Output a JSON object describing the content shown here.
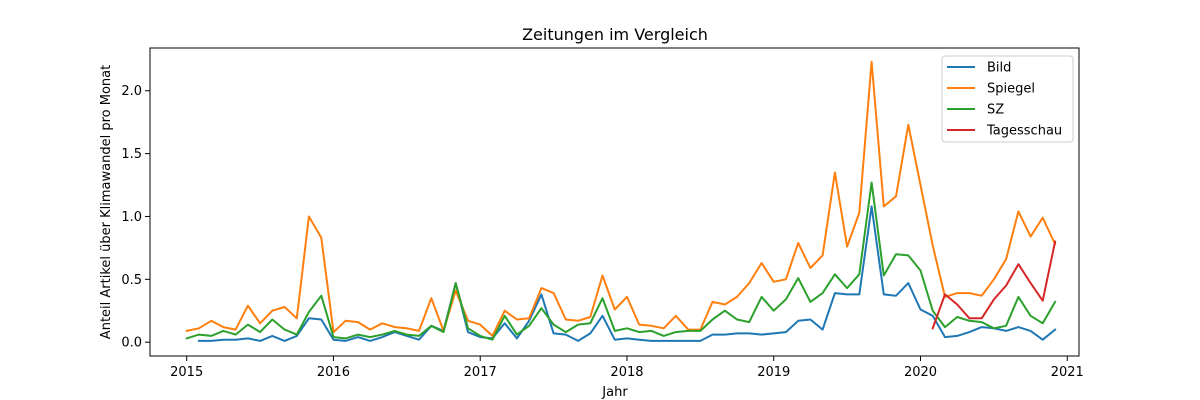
{
  "chart_data": {
    "type": "line",
    "title": "Zeitungen im Vergleich",
    "xlabel": "Jahr",
    "ylabel": "Anteil Artikel über Klimawandel pro Monat",
    "xlim": [
      2014.75,
      2021.08
    ],
    "ylim": [
      -0.11,
      2.34
    ],
    "xticks": [
      2015,
      2016,
      2017,
      2018,
      2019,
      2020,
      2021
    ],
    "yticks": [
      0.0,
      0.5,
      1.0,
      1.5,
      2.0
    ],
    "xtick_labels": [
      "2015",
      "2016",
      "2017",
      "2018",
      "2019",
      "2020",
      "2021"
    ],
    "ytick_labels": [
      "0.0",
      "0.5",
      "1.0",
      "1.5",
      "2.0"
    ],
    "grid": false,
    "legend_position": "top-right",
    "series": [
      {
        "name": "Bild",
        "color": "#1f77b4",
        "x": [
          2015.083,
          2015.167,
          2015.25,
          2015.333,
          2015.417,
          2015.5,
          2015.583,
          2015.667,
          2015.75,
          2015.833,
          2015.917,
          2016.0,
          2016.083,
          2016.167,
          2016.25,
          2016.333,
          2016.417,
          2016.5,
          2016.583,
          2016.667,
          2016.75,
          2016.833,
          2016.917,
          2017.0,
          2017.083,
          2017.167,
          2017.25,
          2017.333,
          2017.417,
          2017.5,
          2017.583,
          2017.667,
          2017.75,
          2017.833,
          2017.917,
          2018.0,
          2018.083,
          2018.167,
          2018.25,
          2018.333,
          2018.417,
          2018.5,
          2018.583,
          2018.667,
          2018.75,
          2018.833,
          2018.917,
          2019.0,
          2019.083,
          2019.167,
          2019.25,
          2019.333,
          2019.417,
          2019.5,
          2019.583,
          2019.667,
          2019.75,
          2019.833,
          2019.917,
          2020.0,
          2020.083,
          2020.167,
          2020.25,
          2020.333,
          2020.417,
          2020.5,
          2020.583,
          2020.667,
          2020.75,
          2020.833,
          2020.917
        ],
        "y": [
          0.01,
          0.01,
          0.02,
          0.02,
          0.03,
          0.01,
          0.05,
          0.01,
          0.05,
          0.19,
          0.18,
          0.02,
          0.01,
          0.04,
          0.01,
          0.04,
          0.08,
          0.05,
          0.02,
          0.13,
          0.09,
          0.47,
          0.08,
          0.04,
          0.03,
          0.15,
          0.03,
          0.17,
          0.38,
          0.07,
          0.06,
          0.01,
          0.07,
          0.21,
          0.02,
          0.03,
          0.02,
          0.01,
          0.01,
          0.01,
          0.01,
          0.01,
          0.06,
          0.06,
          0.07,
          0.07,
          0.06,
          0.07,
          0.08,
          0.17,
          0.18,
          0.1,
          0.39,
          0.38,
          0.38,
          1.08,
          0.38,
          0.37,
          0.47,
          0.26,
          0.21,
          0.04,
          0.05,
          0.08,
          0.12,
          0.11,
          0.09,
          0.12,
          0.09,
          0.02,
          0.1
        ]
      },
      {
        "name": "Spiegel",
        "color": "#ff7f0e",
        "x": [
          2015.0,
          2015.083,
          2015.167,
          2015.25,
          2015.333,
          2015.417,
          2015.5,
          2015.583,
          2015.667,
          2015.75,
          2015.833,
          2015.917,
          2016.0,
          2016.083,
          2016.167,
          2016.25,
          2016.333,
          2016.417,
          2016.5,
          2016.583,
          2016.667,
          2016.75,
          2016.833,
          2016.917,
          2017.0,
          2017.083,
          2017.167,
          2017.25,
          2017.333,
          2017.417,
          2017.5,
          2017.583,
          2017.667,
          2017.75,
          2017.833,
          2017.917,
          2018.0,
          2018.083,
          2018.167,
          2018.25,
          2018.333,
          2018.417,
          2018.5,
          2018.583,
          2018.667,
          2018.75,
          2018.833,
          2018.917,
          2019.0,
          2019.083,
          2019.167,
          2019.25,
          2019.333,
          2019.417,
          2019.5,
          2019.583,
          2019.667,
          2019.75,
          2019.833,
          2019.917,
          2020.0,
          2020.083,
          2020.167,
          2020.25,
          2020.333,
          2020.417,
          2020.5,
          2020.583,
          2020.667,
          2020.75,
          2020.833,
          2020.917
        ],
        "y": [
          0.09,
          0.11,
          0.17,
          0.12,
          0.1,
          0.29,
          0.15,
          0.25,
          0.28,
          0.19,
          1.0,
          0.83,
          0.08,
          0.17,
          0.16,
          0.1,
          0.15,
          0.12,
          0.11,
          0.09,
          0.35,
          0.09,
          0.41,
          0.17,
          0.14,
          0.05,
          0.25,
          0.18,
          0.19,
          0.43,
          0.39,
          0.18,
          0.17,
          0.2,
          0.53,
          0.26,
          0.36,
          0.14,
          0.13,
          0.11,
          0.21,
          0.1,
          0.1,
          0.32,
          0.3,
          0.36,
          0.47,
          0.63,
          0.48,
          0.5,
          0.79,
          0.59,
          0.69,
          1.35,
          0.76,
          1.03,
          2.23,
          1.08,
          1.16,
          1.73,
          1.25,
          0.77,
          0.36,
          0.39,
          0.39,
          0.37,
          0.5,
          0.66,
          1.04,
          0.84,
          0.99,
          0.78
        ]
      },
      {
        "name": "SZ",
        "color": "#2ca02c",
        "x": [
          2015.0,
          2015.083,
          2015.167,
          2015.25,
          2015.333,
          2015.417,
          2015.5,
          2015.583,
          2015.667,
          2015.75,
          2015.833,
          2015.917,
          2016.0,
          2016.083,
          2016.167,
          2016.25,
          2016.333,
          2016.417,
          2016.5,
          2016.583,
          2016.667,
          2016.75,
          2016.833,
          2016.917,
          2017.0,
          2017.083,
          2017.167,
          2017.25,
          2017.333,
          2017.417,
          2017.5,
          2017.583,
          2017.667,
          2017.75,
          2017.833,
          2017.917,
          2018.0,
          2018.083,
          2018.167,
          2018.25,
          2018.333,
          2018.417,
          2018.5,
          2018.583,
          2018.667,
          2018.75,
          2018.833,
          2018.917,
          2019.0,
          2019.083,
          2019.167,
          2019.25,
          2019.333,
          2019.417,
          2019.5,
          2019.583,
          2019.667,
          2019.75,
          2019.833,
          2019.917,
          2020.0,
          2020.083,
          2020.167,
          2020.25,
          2020.333,
          2020.417,
          2020.5,
          2020.583,
          2020.667,
          2020.75,
          2020.833,
          2020.917
        ],
        "y": [
          0.03,
          0.06,
          0.05,
          0.09,
          0.06,
          0.14,
          0.08,
          0.18,
          0.1,
          0.06,
          0.24,
          0.37,
          0.04,
          0.03,
          0.06,
          0.04,
          0.06,
          0.09,
          0.06,
          0.05,
          0.13,
          0.08,
          0.47,
          0.11,
          0.05,
          0.02,
          0.21,
          0.06,
          0.13,
          0.27,
          0.14,
          0.08,
          0.14,
          0.15,
          0.35,
          0.09,
          0.11,
          0.08,
          0.09,
          0.05,
          0.08,
          0.09,
          0.09,
          0.18,
          0.25,
          0.18,
          0.16,
          0.36,
          0.25,
          0.34,
          0.51,
          0.32,
          0.39,
          0.54,
          0.43,
          0.54,
          1.27,
          0.53,
          0.7,
          0.69,
          0.57,
          0.25,
          0.12,
          0.2,
          0.17,
          0.16,
          0.11,
          0.13,
          0.36,
          0.21,
          0.15,
          0.32
        ]
      },
      {
        "name": "Tagesschau",
        "color": "#d62728",
        "x": [
          2020.083,
          2020.167,
          2020.25,
          2020.333,
          2020.417,
          2020.5,
          2020.583,
          2020.667,
          2020.75,
          2020.833,
          2020.917
        ],
        "y": [
          0.11,
          0.38,
          0.3,
          0.19,
          0.19,
          0.34,
          0.45,
          0.62,
          0.47,
          0.33,
          0.8
        ]
      }
    ]
  }
}
